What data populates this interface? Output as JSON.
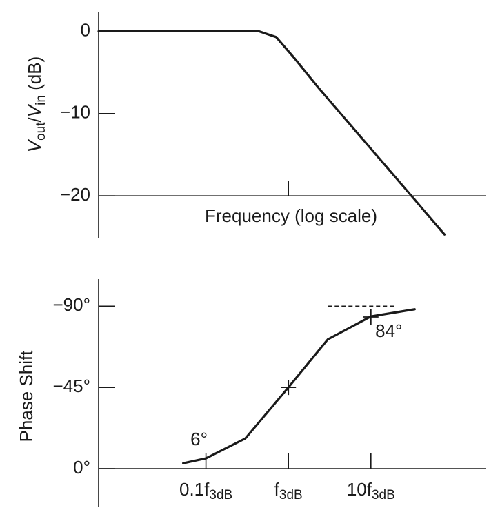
{
  "chart_data": [
    {
      "type": "line",
      "ylabel": [
        "V",
        "out",
        "/",
        "V",
        "in",
        " (dB)"
      ],
      "xlabel": "Frequency (log scale)",
      "log_x": true,
      "xlim": [
        0.005,
        250
      ],
      "ylim": [
        -25.1,
        2.3
      ],
      "xaxis_at": -20,
      "xticks": [
        {
          "value": 1,
          "label": null
        }
      ],
      "yticks": [
        {
          "value": 0,
          "label": "0"
        },
        {
          "value": -10,
          "label": "−10"
        },
        {
          "value": -20,
          "label": "−20"
        }
      ],
      "x": [
        0.005,
        0.44,
        0.71,
        1.19,
        2.24,
        31,
        78
      ],
      "values": [
        0,
        0,
        -0.7,
        -3.3,
        -6.7,
        -20,
        -24.7
      ],
      "color": "#1a1a1a"
    },
    {
      "type": "line",
      "ylabel": "Phase Shift",
      "log_x": true,
      "xlim": [
        0.005,
        250
      ],
      "ylim": [
        21,
        -105
      ],
      "xaxis_at": 0,
      "xticks": [
        {
          "value": 0.1,
          "label": "0.1f",
          "subscript": "3dB"
        },
        {
          "value": 1,
          "label": "f",
          "subscript": "3dB"
        },
        {
          "value": 10,
          "label": "10f",
          "subscript": "3dB"
        }
      ],
      "yticks": [
        {
          "value": 0,
          "label": "0°"
        },
        {
          "value": -45,
          "label": "−45°"
        },
        {
          "value": -90,
          "label": "−90°"
        }
      ],
      "x": [
        0.053,
        0.1,
        0.3,
        1,
        3,
        10,
        34
      ],
      "values": [
        -3,
        -5.7,
        -16.7,
        -45,
        -71.6,
        -84.3,
        -88.3
      ],
      "color": "#1a1a1a",
      "markers": {
        "x": [
          1,
          10
        ],
        "values": [
          -45,
          -84
        ]
      },
      "reference_line": {
        "value": -90,
        "x": [
          3,
          20
        ]
      },
      "annotations": [
        {
          "text": "6°",
          "x": 0.1,
          "y": -6
        },
        {
          "text": "84°",
          "x": 10,
          "y": -84
        }
      ]
    }
  ]
}
